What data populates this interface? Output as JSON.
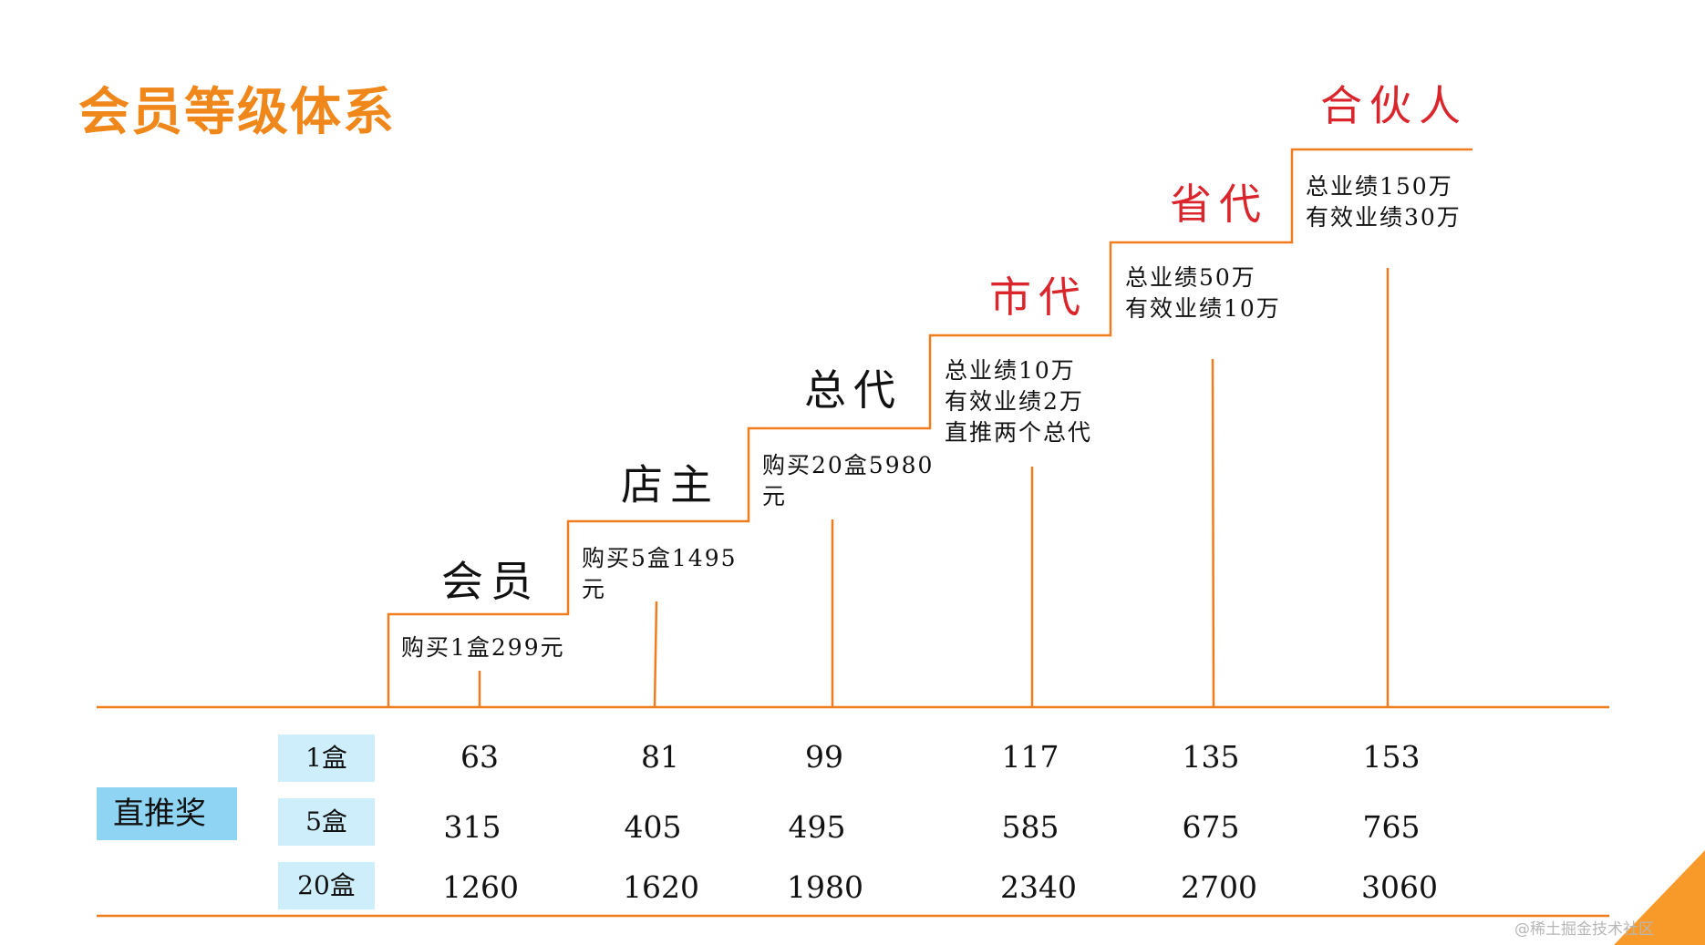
{
  "title": "会员等级体系",
  "colors": {
    "accent_orange": "#f0871a",
    "line_orange": "#f07c1e",
    "level_red": "#d9252b",
    "bonus_label_bg": "#8fd4f2",
    "row_label_bg": "#cdeefa"
  },
  "levels": [
    {
      "name": "会员",
      "req": [
        "购买1盒299元"
      ]
    },
    {
      "name": "店主",
      "req": [
        "购买5盒1495",
        "元"
      ]
    },
    {
      "name": "总代",
      "req": [
        "购买20盒5980",
        "元"
      ]
    },
    {
      "name": "市代",
      "req": [
        "总业绩10万",
        "有效业绩2万",
        "直推两个总代"
      ]
    },
    {
      "name": "省代",
      "req": [
        "总业绩50万",
        "有效业绩10万"
      ]
    },
    {
      "name": "合伙人",
      "req": [
        "总业绩150万",
        "有效业绩30万"
      ]
    }
  ],
  "bonus": {
    "label": "直推奖",
    "rows": [
      {
        "label": "1盒",
        "values": [
          "63",
          "81",
          "99",
          "117",
          "135",
          "153"
        ]
      },
      {
        "label": "5盒",
        "values": [
          "315",
          "405",
          "495",
          "585",
          "675",
          "765"
        ]
      },
      {
        "label": "20盒",
        "values": [
          "1260",
          "1620",
          "1980",
          "2340",
          "2700",
          "3060"
        ]
      }
    ]
  },
  "watermark": "@稀土掘金技术社区"
}
